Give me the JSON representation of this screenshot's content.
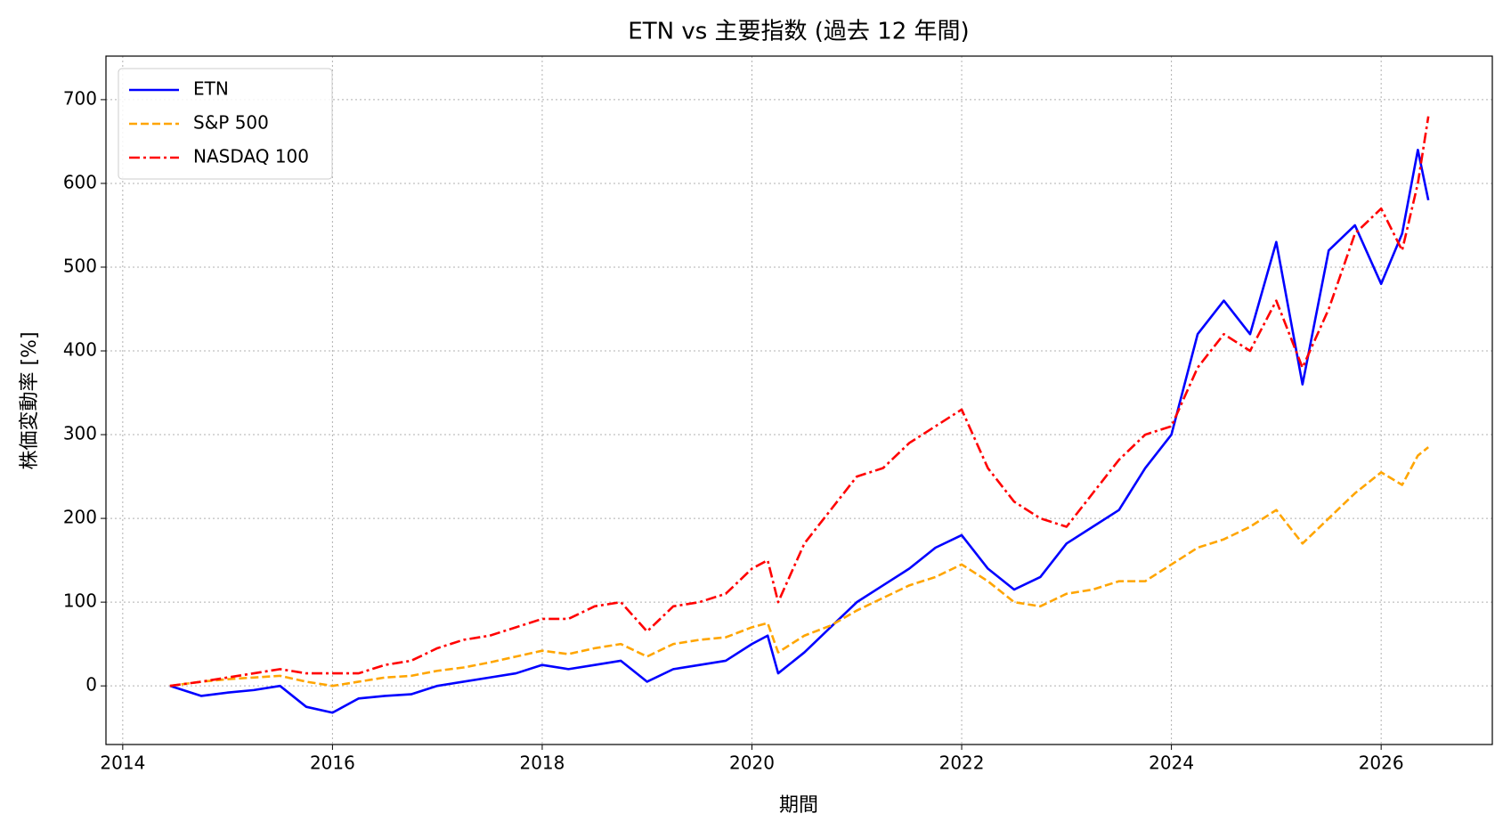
{
  "chart_data": {
    "type": "line",
    "title": "ETN vs 主要指数 (過去 12 年間)",
    "x_label": "期間",
    "y_label": "株価変動率 [%]",
    "x": [
      2014.45,
      2014.75,
      2015.0,
      2015.25,
      2015.5,
      2015.75,
      2016.0,
      2016.25,
      2016.5,
      2016.75,
      2017.0,
      2017.25,
      2017.5,
      2017.75,
      2018.0,
      2018.25,
      2018.5,
      2018.75,
      2019.0,
      2019.25,
      2019.5,
      2019.75,
      2020.0,
      2020.15,
      2020.25,
      2020.5,
      2020.75,
      2021.0,
      2021.25,
      2021.5,
      2021.75,
      2022.0,
      2022.25,
      2022.5,
      2022.75,
      2023.0,
      2023.25,
      2023.5,
      2023.75,
      2024.0,
      2024.25,
      2024.5,
      2024.75,
      2025.0,
      2025.25,
      2025.5,
      2025.75,
      2026.0,
      2026.2,
      2026.35,
      2026.45
    ],
    "series": [
      {
        "name": "ETN",
        "color": "#0000ff",
        "linestyle": "solid",
        "values": [
          0,
          -12,
          -8,
          -5,
          0,
          -25,
          -32,
          -15,
          -12,
          -10,
          0,
          5,
          10,
          15,
          25,
          20,
          25,
          30,
          5,
          20,
          25,
          30,
          50,
          60,
          15,
          40,
          70,
          100,
          120,
          140,
          165,
          180,
          140,
          115,
          130,
          170,
          190,
          210,
          260,
          300,
          420,
          460,
          420,
          530,
          360,
          520,
          550,
          480,
          540,
          640,
          580
        ]
      },
      {
        "name": "S&P 500",
        "color": "#ffa500",
        "linestyle": "dashed",
        "values": [
          0,
          5,
          8,
          10,
          12,
          5,
          0,
          5,
          10,
          12,
          18,
          22,
          28,
          35,
          42,
          38,
          45,
          50,
          35,
          50,
          55,
          58,
          70,
          75,
          40,
          60,
          72,
          90,
          105,
          120,
          130,
          145,
          125,
          100,
          95,
          110,
          115,
          125,
          125,
          145,
          165,
          175,
          190,
          210,
          170,
          200,
          230,
          255,
          240,
          275,
          285
        ]
      },
      {
        "name": "NASDAQ 100",
        "color": "#ff0000",
        "linestyle": "dashdot",
        "values": [
          0,
          5,
          10,
          15,
          20,
          15,
          15,
          15,
          25,
          30,
          45,
          55,
          60,
          70,
          80,
          80,
          95,
          100,
          65,
          95,
          100,
          110,
          140,
          150,
          100,
          170,
          210,
          250,
          260,
          290,
          310,
          330,
          260,
          220,
          200,
          190,
          230,
          270,
          300,
          310,
          380,
          420,
          400,
          460,
          380,
          450,
          540,
          570,
          520,
          600,
          680
        ]
      }
    ],
    "xlim": [
      2013.84,
      2027.06
    ],
    "xticks": [
      2014,
      2016,
      2018,
      2020,
      2022,
      2024,
      2026
    ],
    "ylim": [
      -70,
      752
    ],
    "yticks": [
      0,
      100,
      200,
      300,
      400,
      500,
      600,
      700
    ],
    "grid": true,
    "legend": "upper left"
  }
}
